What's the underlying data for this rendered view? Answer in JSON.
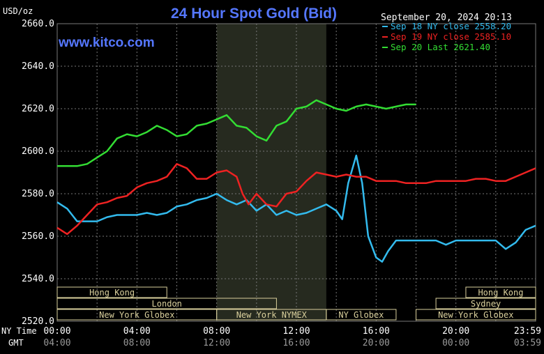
{
  "chart_data": {
    "type": "line",
    "title": "24 Hour Spot Gold (Bid)",
    "watermark": "www.kitco.com",
    "ylabel": "USD/oz",
    "ylim": [
      2520,
      2660
    ],
    "yticks": [
      "2660.0",
      "2640.0",
      "2620.0",
      "2600.0",
      "2580.0",
      "2560.0",
      "2540.0",
      "2520.0"
    ],
    "ytick_values": [
      2660,
      2640,
      2620,
      2600,
      2580,
      2560,
      2540,
      2520
    ],
    "xlim": [
      0,
      24
    ],
    "xticks_ny": [
      "00:00",
      "04:00",
      "08:00",
      "12:00",
      "16:00",
      "20:00",
      "23:59"
    ],
    "xticks_gmt": [
      "04:00",
      "08:00",
      "12:00",
      "16:00",
      "20:00",
      "00:00",
      "03:59"
    ],
    "xtick_hours": [
      0,
      4,
      8,
      12,
      16,
      20,
      23.98
    ],
    "row_labels": {
      "ny": "NY Time",
      "gmt": "GMT"
    },
    "timestamp": "September 20, 2024 20:13",
    "grid": true,
    "legend_position": "top-right",
    "highlight_band": [
      8,
      13.5
    ],
    "sessions": [
      {
        "label": "Hong Kong",
        "start": 0,
        "end": 5.5,
        "row": 0
      },
      {
        "label": "Hong Kong",
        "start": 20.5,
        "end": 24,
        "row": 0
      },
      {
        "label": "London",
        "start": 0,
        "end": 11,
        "row": 1
      },
      {
        "label": "Sydney",
        "start": 19,
        "end": 24,
        "row": 1
      },
      {
        "label": "New York Globex",
        "start": 0,
        "end": 8,
        "row": 2
      },
      {
        "label": "New York NYMEX",
        "start": 8,
        "end": 13.5,
        "row": 2
      },
      {
        "label": "NY Globex",
        "start": 13.5,
        "end": 17,
        "row": 2
      },
      {
        "label": "New York Globex",
        "start": 18,
        "end": 24,
        "row": 2
      }
    ],
    "series": [
      {
        "name": "Sep 18 NY close 2558.20",
        "color": "#33bbee",
        "x": [
          0,
          0.5,
          1,
          1.5,
          2,
          2.5,
          3,
          3.5,
          4,
          4.5,
          5,
          5.5,
          6,
          6.5,
          7,
          7.5,
          8,
          8.5,
          9,
          9.5,
          10,
          10.5,
          11,
          11.5,
          12,
          12.5,
          13,
          13.5,
          14,
          14.3,
          14.6,
          15,
          15.3,
          15.6,
          16,
          16.3,
          16.6,
          17,
          17.5,
          18,
          18.5,
          19,
          19.5,
          20,
          20.5,
          21,
          21.5,
          22,
          22.5,
          23,
          23.5,
          24
        ],
        "y": [
          2576,
          2573,
          2567,
          2567,
          2567,
          2569,
          2570,
          2570,
          2570,
          2571,
          2570,
          2571,
          2574,
          2575,
          2577,
          2578,
          2580,
          2577,
          2575,
          2577,
          2572,
          2575,
          2570,
          2572,
          2570,
          2571,
          2573,
          2575,
          2572,
          2568,
          2585,
          2598,
          2585,
          2560,
          2550,
          2548,
          2553,
          2558,
          2558,
          2558,
          2558,
          2558,
          2556,
          2558,
          2558,
          2558,
          2558,
          2558,
          2554,
          2557,
          2563,
          2565
        ]
      },
      {
        "name": "Sep 19 NY close 2585.10",
        "color": "#ee2222",
        "x": [
          0,
          0.5,
          1,
          1.5,
          2,
          2.5,
          3,
          3.5,
          4,
          4.5,
          5,
          5.5,
          6,
          6.5,
          7,
          7.5,
          8,
          8.5,
          9,
          9.3,
          9.6,
          10,
          10.5,
          11,
          11.5,
          12,
          12.5,
          13,
          13.5,
          14,
          14.5,
          15,
          15.5,
          16,
          16.5,
          17,
          17.5,
          18,
          18.5,
          19,
          19.5,
          20,
          20.5,
          21,
          21.5,
          22,
          22.5,
          23,
          23.5,
          24
        ],
        "y": [
          2564,
          2561,
          2565,
          2570,
          2575,
          2576,
          2578,
          2579,
          2583,
          2585,
          2586,
          2588,
          2594,
          2592,
          2587,
          2587,
          2590,
          2591,
          2588,
          2580,
          2575,
          2580,
          2575,
          2574,
          2580,
          2581,
          2586,
          2590,
          2589,
          2588,
          2589,
          2588,
          2588,
          2586,
          2586,
          2586,
          2585,
          2585,
          2585,
          2586,
          2586,
          2586,
          2586,
          2587,
          2587,
          2586,
          2586,
          2588,
          2590,
          2592
        ]
      },
      {
        "name": "Sep 20 Last 2621.40",
        "color": "#33dd33",
        "x": [
          0,
          0.5,
          1,
          1.5,
          2,
          2.5,
          3,
          3.5,
          4,
          4.5,
          5,
          5.5,
          6,
          6.5,
          7,
          7.5,
          8,
          8.5,
          9,
          9.5,
          10,
          10.5,
          11,
          11.5,
          12,
          12.5,
          13,
          13.5,
          14,
          14.5,
          15,
          15.5,
          16,
          16.5,
          17,
          17.5,
          18
        ],
        "y": [
          2593,
          2593,
          2593,
          2594,
          2597,
          2600,
          2606,
          2608,
          2607,
          2609,
          2612,
          2610,
          2607,
          2608,
          2612,
          2613,
          2615,
          2617,
          2612,
          2611,
          2607,
          2605,
          2612,
          2614,
          2620,
          2621,
          2624,
          2622,
          2620,
          2619,
          2621,
          2622,
          2621,
          2620,
          2621,
          2622,
          2622
        ]
      }
    ]
  },
  "colors": {
    "background": "#000000",
    "grid": "#777777",
    "text": "#ffffff",
    "title": "#5577ff",
    "band": "#262a1f",
    "session_box": "#d9cf9c"
  }
}
